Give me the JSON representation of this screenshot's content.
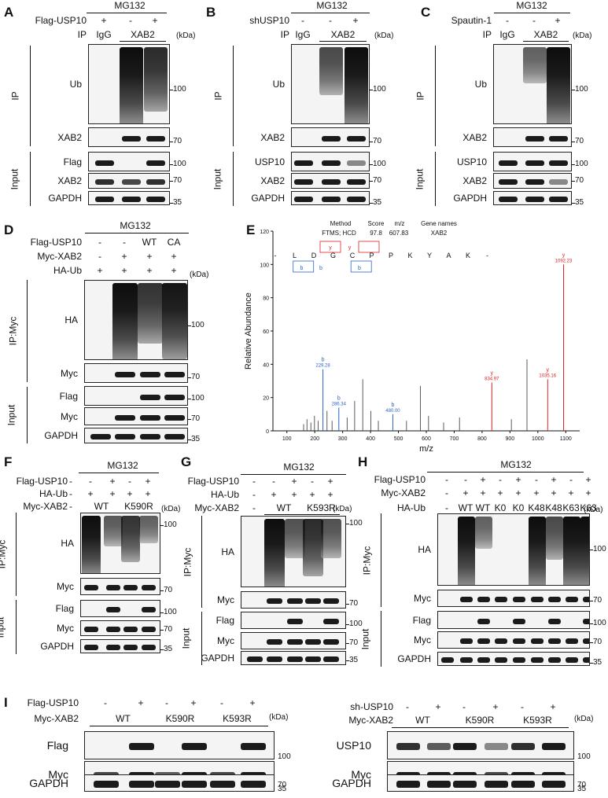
{
  "panels": {
    "A": {
      "label": "A",
      "treatment": "MG132",
      "rows": [
        {
          "name": "Flag-USP10",
          "values": [
            "+",
            "-",
            "+"
          ]
        }
      ],
      "ip": {
        "name": "IP",
        "values": [
          "IgG",
          "XAB2"
        ]
      },
      "kda": "(kDa)",
      "group_ip": "IP",
      "group_input": "Input",
      "blots": [
        "Ub",
        "XAB2",
        "Flag",
        "XAB2",
        "GAPDH"
      ],
      "markers": [
        "100",
        "70",
        "100",
        "70",
        "35"
      ]
    },
    "B": {
      "label": "B",
      "treatment": "MG132",
      "rows": [
        {
          "name": "shUSP10",
          "values": [
            "-",
            "-",
            "+"
          ]
        }
      ],
      "ip": {
        "name": "IP",
        "values": [
          "IgG",
          "XAB2"
        ]
      },
      "kda": "(kDa)",
      "group_ip": "IP",
      "group_input": "Input",
      "blots": [
        "Ub",
        "XAB2",
        "USP10",
        "XAB2",
        "GAPDH"
      ],
      "markers": [
        "100",
        "70",
        "100",
        "70",
        "35"
      ]
    },
    "C": {
      "label": "C",
      "treatment": "MG132",
      "rows": [
        {
          "name": "Spautin-1",
          "values": [
            "-",
            "-",
            "+"
          ]
        }
      ],
      "ip": {
        "name": "IP",
        "values": [
          "IgG",
          "XAB2"
        ]
      },
      "kda": "(kDa)",
      "group_ip": "IP",
      "group_input": "Input",
      "blots": [
        "Ub",
        "XAB2",
        "USP10",
        "XAB2",
        "GAPDH"
      ],
      "markers": [
        "100",
        "70",
        "100",
        "70",
        "35"
      ]
    },
    "D": {
      "label": "D",
      "treatment": "MG132",
      "rows": [
        {
          "name": "Flag-USP10",
          "values": [
            "-",
            "-",
            "WT",
            "CA"
          ]
        },
        {
          "name": "Myc-XAB2",
          "values": [
            "-",
            "+",
            "+",
            "+"
          ]
        },
        {
          "name": "HA-Ub",
          "values": [
            "+",
            "+",
            "+",
            "+"
          ]
        }
      ],
      "kda": "(kDa)",
      "group_ip": "IP:Myc",
      "group_input": "Input",
      "blots": [
        "HA",
        "Myc",
        "Flag",
        "Myc",
        "GAPDH"
      ],
      "markers": [
        "100",
        "70",
        "100",
        "70",
        "35"
      ]
    },
    "E": {
      "label": "E",
      "header": {
        "method_label": "Method",
        "method_value": "FTMS; HCD",
        "score_label": "Score",
        "score_value": "97.8",
        "mz_label": "m/z",
        "mz_value": "607.83",
        "gene_label": "Gene names",
        "gene_value": "XAB2"
      },
      "sequence": [
        "-",
        "L",
        "D",
        "G",
        "C",
        "P",
        "P",
        "K",
        "Y",
        "A",
        "K",
        "-"
      ],
      "ion_b": "b",
      "ion_y": "y",
      "ylabel": "Relative Abundance",
      "xlabel": "m/z"
    },
    "F": {
      "label": "F",
      "treatment": "MG132",
      "rows": [
        {
          "name": "Flag-USP10",
          "values": [
            "-",
            "-",
            "+",
            "-",
            "+"
          ]
        },
        {
          "name": "HA-Ub",
          "values": [
            "-",
            "+",
            "+",
            "+",
            "+"
          ]
        }
      ],
      "myc_row": {
        "name": "Myc-XAB2",
        "first": "-",
        "groups": [
          "WT",
          "K590R"
        ]
      },
      "kda": "(kDa)",
      "group_ip": "IP:Myc",
      "group_input": "Input",
      "blots": [
        "HA",
        "Myc",
        "Flag",
        "Myc",
        "GAPDH"
      ],
      "markers": [
        "100",
        "70",
        "100",
        "70",
        "35"
      ]
    },
    "G": {
      "label": "G",
      "treatment": "MG132",
      "rows": [
        {
          "name": "Flag-USP10",
          "values": [
            "-",
            "-",
            "+",
            "-",
            "+"
          ]
        },
        {
          "name": "HA-Ub",
          "values": [
            "-",
            "+",
            "+",
            "+",
            "+"
          ]
        }
      ],
      "myc_row": {
        "name": "Myc-XAB2",
        "first": "-",
        "groups": [
          "WT",
          "K593R"
        ]
      },
      "kda": "(kDa)",
      "group_ip": "IP:Myc",
      "group_input": "Input",
      "blots": [
        "HA",
        "Myc",
        "Flag",
        "Myc",
        "GAPDH"
      ],
      "markers": [
        "100",
        "70",
        "100",
        "70",
        "35"
      ]
    },
    "H": {
      "label": "H",
      "treatment": "MG132",
      "rows": [
        {
          "name": "Flag-USP10",
          "values": [
            "-",
            "-",
            "+",
            "-",
            "+",
            "-",
            "+",
            "-",
            "+"
          ]
        },
        {
          "name": "Myc-XAB2",
          "values": [
            "-",
            "+",
            "+",
            "+",
            "+",
            "+",
            "+",
            "+",
            "+"
          ]
        },
        {
          "name": "HA-Ub",
          "values": [
            "-",
            "WT",
            "WT",
            "K0",
            "K0",
            "K48",
            "K48",
            "K63",
            "K63"
          ]
        }
      ],
      "kda": "(kDa)",
      "group_ip": "IP:Myc",
      "group_input": "Input",
      "blots": [
        "HA",
        "Myc",
        "Flag",
        "Myc",
        "GAPDH"
      ],
      "markers": [
        "100",
        "70",
        "100",
        "70",
        "35"
      ]
    },
    "I": {
      "label": "I",
      "left": {
        "row1": {
          "name": "Flag-USP10",
          "values": [
            "-",
            "+",
            "-",
            "+",
            "-",
            "+"
          ]
        },
        "row2": {
          "name": "Myc-XAB2",
          "groups": [
            "WT",
            "K590R",
            "K593R"
          ]
        },
        "kda": "(kDa)",
        "blots": [
          "Flag",
          "Myc",
          "GAPDH"
        ],
        "markers": [
          "100",
          "70",
          "35"
        ]
      },
      "right": {
        "row1": {
          "name": "sh-USP10",
          "values": [
            "-",
            "+",
            "-",
            "+",
            "-",
            "+"
          ]
        },
        "row2": {
          "name": "Myc-XAB2",
          "groups": [
            "WT",
            "K590R",
            "K593R"
          ]
        },
        "kda": "(kDa)",
        "blots": [
          "USP10",
          "Myc",
          "GAPDH"
        ],
        "markers": [
          "100",
          "70",
          "35"
        ]
      }
    }
  },
  "chart_data": {
    "type": "bar",
    "title": "",
    "xlabel": "m/z",
    "ylabel": "Relative Abundance",
    "xlim": [
      50,
      1150
    ],
    "ylim": [
      0,
      120
    ],
    "xticks": [
      100,
      200,
      300,
      400,
      500,
      600,
      700,
      800,
      900,
      1000,
      1100
    ],
    "yticks": [
      0,
      20,
      40,
      60,
      80,
      100,
      120
    ],
    "peaks": [
      {
        "mz": 160,
        "intensity": 4
      },
      {
        "mz": 172,
        "intensity": 7
      },
      {
        "mz": 186,
        "intensity": 5
      },
      {
        "mz": 199,
        "intensity": 9
      },
      {
        "mz": 212,
        "intensity": 6
      },
      {
        "mz": 229.28,
        "intensity": 37,
        "ion": "b",
        "label": "229.28"
      },
      {
        "mz": 244,
        "intensity": 12
      },
      {
        "mz": 262,
        "intensity": 6
      },
      {
        "mz": 286.34,
        "intensity": 14,
        "ion": "b",
        "label": "286.34"
      },
      {
        "mz": 316,
        "intensity": 8
      },
      {
        "mz": 343,
        "intensity": 18
      },
      {
        "mz": 372,
        "intensity": 31
      },
      {
        "mz": 401,
        "intensity": 12
      },
      {
        "mz": 428,
        "intensity": 6
      },
      {
        "mz": 480.0,
        "intensity": 10,
        "ion": "b",
        "label": "480.00"
      },
      {
        "mz": 529,
        "intensity": 6
      },
      {
        "mz": 579,
        "intensity": 27
      },
      {
        "mz": 608,
        "intensity": 9
      },
      {
        "mz": 662,
        "intensity": 5
      },
      {
        "mz": 719,
        "intensity": 8
      },
      {
        "mz": 834.97,
        "intensity": 29,
        "ion": "y",
        "label": "834.97"
      },
      {
        "mz": 905,
        "intensity": 7
      },
      {
        "mz": 961,
        "intensity": 43
      },
      {
        "mz": 1035.16,
        "intensity": 31,
        "ion": "y",
        "label": "1035.16"
      },
      {
        "mz": 1092.23,
        "intensity": 100,
        "ion": "y",
        "label": "1092.23"
      }
    ]
  }
}
